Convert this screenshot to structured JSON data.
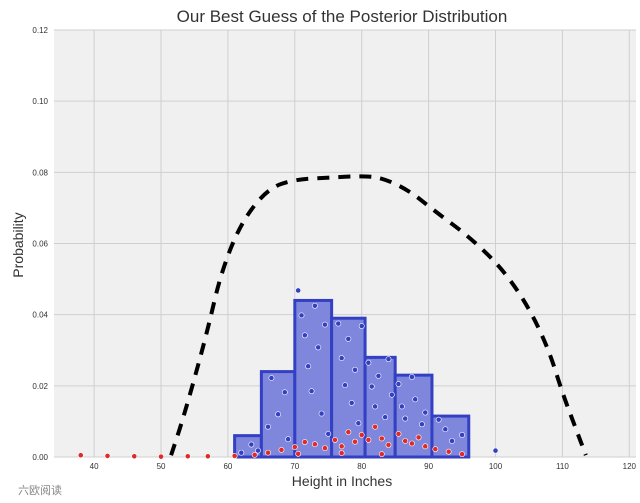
{
  "chart_data": {
    "type": "bar",
    "title": "Our Best Guess of the Posterior Distribution",
    "xlabel": "Height in Inches",
    "ylabel": "Probability",
    "xlim": [
      34,
      121
    ],
    "ylim": [
      0,
      0.12
    ],
    "xticks": [
      "40",
      "50",
      "60",
      "70",
      "80",
      "90",
      "100",
      "110",
      "120"
    ],
    "yticks": [
      "0.00",
      "0.02",
      "0.04",
      "0.06",
      "0.08",
      "0.10",
      "0.12"
    ],
    "grid": true,
    "histogram": {
      "bins": [
        [
          61,
          65,
          0.006
        ],
        [
          65,
          70,
          0.024
        ],
        [
          70,
          75.5,
          0.044
        ],
        [
          75.5,
          80.5,
          0.039
        ],
        [
          80.5,
          85,
          0.028
        ],
        [
          85,
          90.5,
          0.023
        ],
        [
          90.5,
          96,
          0.0115
        ]
      ],
      "fill": "#7f87dc",
      "edge": "#3340c4"
    },
    "density_curve": {
      "style": "dashed",
      "color": "#000000",
      "points": [
        [
          51.5,
          0.0005
        ],
        [
          53,
          0.009
        ],
        [
          55,
          0.022
        ],
        [
          57,
          0.036
        ],
        [
          59,
          0.052
        ],
        [
          62,
          0.066
        ],
        [
          66,
          0.0755
        ],
        [
          70,
          0.078
        ],
        [
          75,
          0.0785
        ],
        [
          80,
          0.079
        ],
        [
          83,
          0.0785
        ],
        [
          87,
          0.075
        ],
        [
          91,
          0.069
        ],
        [
          96,
          0.062
        ],
        [
          101,
          0.053
        ],
        [
          105,
          0.042
        ],
        [
          108,
          0.03
        ],
        [
          110,
          0.018
        ],
        [
          112,
          0.008
        ],
        [
          113.5,
          0.0005
        ]
      ]
    },
    "scatter_red": {
      "color": "#e02a2a",
      "points": [
        [
          38,
          0.0005
        ],
        [
          42,
          0.0003
        ],
        [
          46,
          0.0002
        ],
        [
          50,
          0.0001
        ],
        [
          54,
          0.0002
        ],
        [
          57,
          0.0002
        ],
        [
          61,
          0.0003
        ],
        [
          64,
          0.0006
        ],
        [
          66,
          0.0012
        ],
        [
          68,
          0.002
        ],
        [
          70,
          0.0028
        ],
        [
          71.5,
          0.0042
        ],
        [
          73,
          0.0036
        ],
        [
          74.5,
          0.0025
        ],
        [
          76,
          0.0048
        ],
        [
          77,
          0.003
        ],
        [
          78,
          0.007
        ],
        [
          79,
          0.0043
        ],
        [
          80,
          0.0062
        ],
        [
          81,
          0.0048
        ],
        [
          82,
          0.0085
        ],
        [
          83,
          0.0052
        ],
        [
          84,
          0.0034
        ],
        [
          85.5,
          0.0065
        ],
        [
          86.5,
          0.0045
        ],
        [
          87.5,
          0.0038
        ],
        [
          88.5,
          0.0055
        ],
        [
          89.5,
          0.003
        ],
        [
          91,
          0.0022
        ],
        [
          93,
          0.0015
        ],
        [
          95,
          0.0008
        ],
        [
          83,
          0.0008
        ],
        [
          77,
          0.0011
        ],
        [
          70.5,
          0.0009
        ]
      ]
    },
    "scatter_blue": {
      "color": "#3340c4",
      "points": [
        [
          62,
          0.0012
        ],
        [
          63.5,
          0.0035
        ],
        [
          64.5,
          0.0018
        ],
        [
          66,
          0.0085
        ],
        [
          66.5,
          0.0222
        ],
        [
          67.5,
          0.012
        ],
        [
          68.5,
          0.0182
        ],
        [
          69,
          0.005
        ],
        [
          70.5,
          0.0468
        ],
        [
          71,
          0.0398
        ],
        [
          71.5,
          0.0342
        ],
        [
          72,
          0.0255
        ],
        [
          72.5,
          0.0185
        ],
        [
          73,
          0.0425
        ],
        [
          73.5,
          0.0308
        ],
        [
          74,
          0.0122
        ],
        [
          74.5,
          0.0372
        ],
        [
          75,
          0.0065
        ],
        [
          76.5,
          0.0375
        ],
        [
          77,
          0.0278
        ],
        [
          77.5,
          0.0202
        ],
        [
          78,
          0.0332
        ],
        [
          78.5,
          0.0152
        ],
        [
          79,
          0.0245
        ],
        [
          79.5,
          0.0095
        ],
        [
          80,
          0.0368
        ],
        [
          81,
          0.0265
        ],
        [
          81.5,
          0.0198
        ],
        [
          82,
          0.0142
        ],
        [
          82.5,
          0.0228
        ],
        [
          83.5,
          0.0112
        ],
        [
          84,
          0.0275
        ],
        [
          84.5,
          0.0175
        ],
        [
          85.5,
          0.0205
        ],
        [
          86,
          0.0142
        ],
        [
          86.5,
          0.0108
        ],
        [
          87.5,
          0.0225
        ],
        [
          88,
          0.0162
        ],
        [
          89,
          0.0092
        ],
        [
          89.5,
          0.0125
        ],
        [
          91.5,
          0.0105
        ],
        [
          92.5,
          0.0078
        ],
        [
          93.5,
          0.0045
        ],
        [
          95,
          0.0062
        ],
        [
          100,
          0.0018
        ]
      ]
    }
  },
  "watermark": "六欧阅读"
}
